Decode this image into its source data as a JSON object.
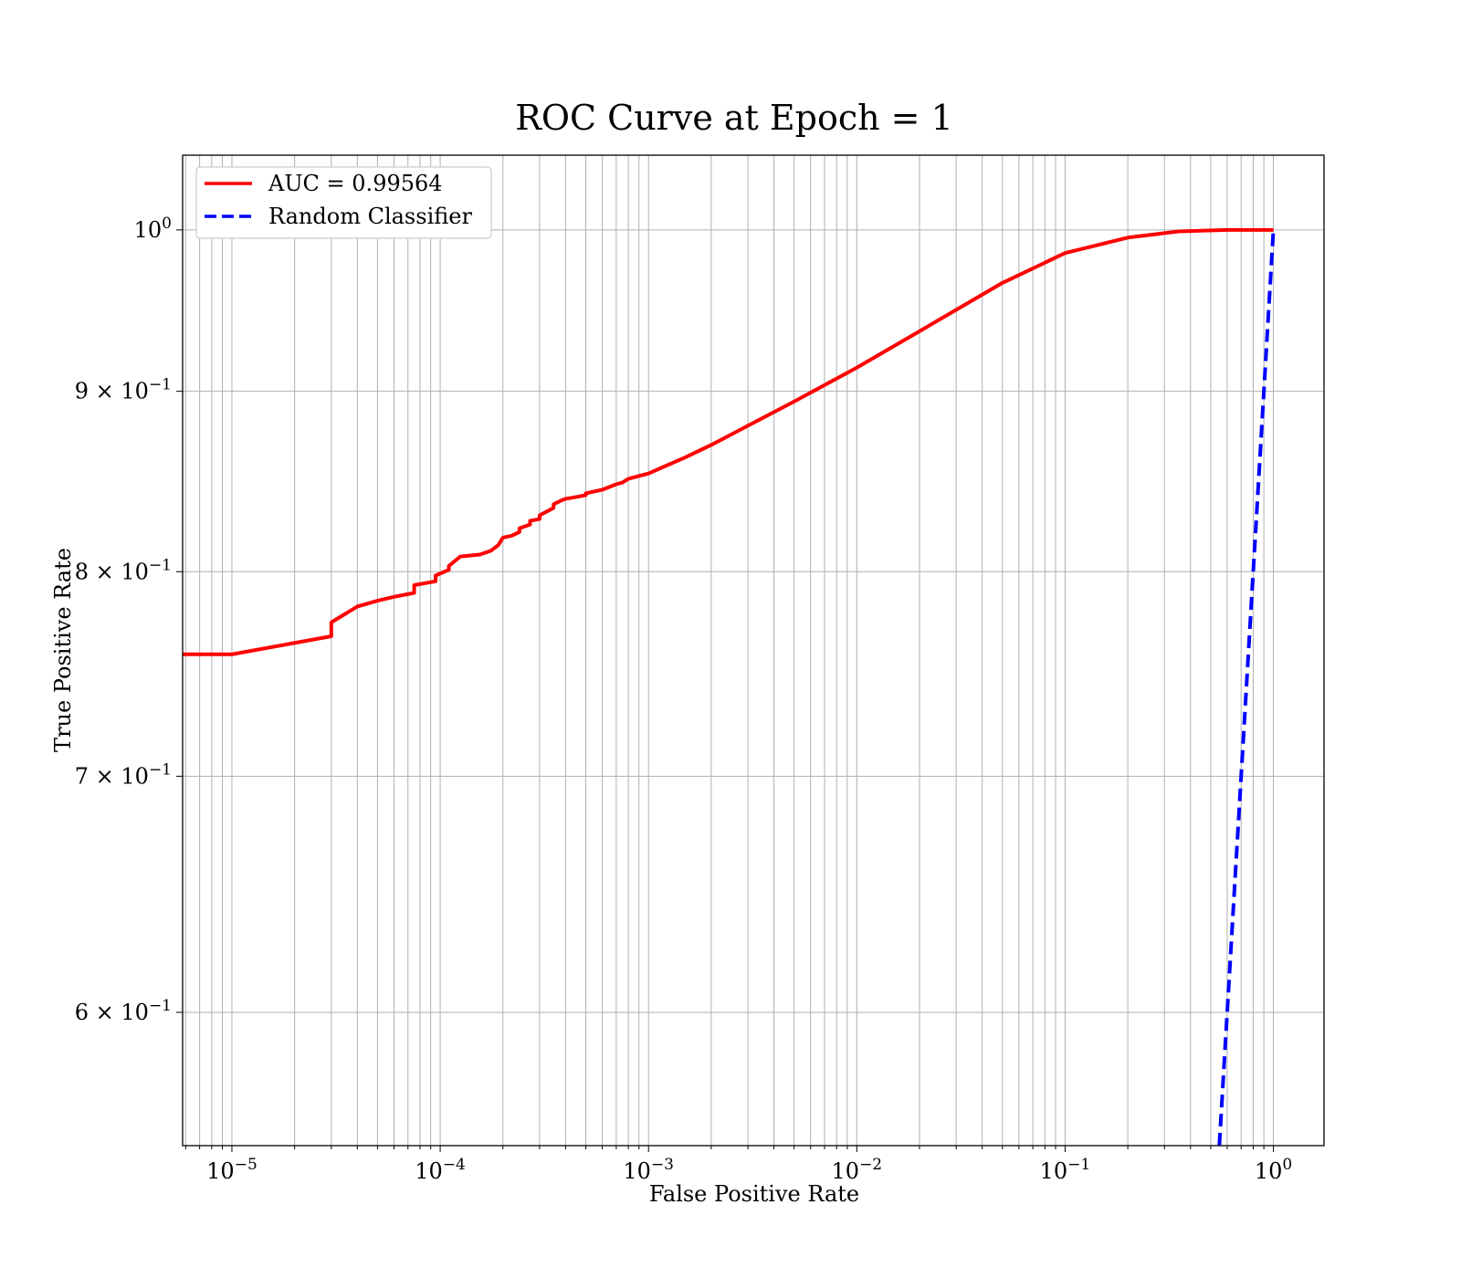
{
  "chart_data": {
    "type": "line",
    "title": "ROC Curve at Epoch = 1",
    "xlabel": "False Positive Rate",
    "ylabel": "True Positive Rate",
    "xscale": "log",
    "yscale": "log",
    "xlim": [
      5.8e-06,
      1.75
    ],
    "ylim": [
      0.55,
      1.05
    ],
    "grid": true,
    "grid_style": "major and minor",
    "legend_position": "upper-left",
    "x_ticks": [
      {
        "value": 1e-05,
        "base": "10",
        "exp": "−5"
      },
      {
        "value": 0.0001,
        "base": "10",
        "exp": "−4"
      },
      {
        "value": 0.001,
        "base": "10",
        "exp": "−3"
      },
      {
        "value": 0.01,
        "base": "10",
        "exp": "−2"
      },
      {
        "value": 0.1,
        "base": "10",
        "exp": "−1"
      },
      {
        "value": 1,
        "base": "10",
        "exp": "0"
      }
    ],
    "y_ticks": [
      {
        "value": 1.0,
        "base": "10",
        "exp": "0"
      },
      {
        "value": 0.9,
        "base": "9 × 10",
        "exp": "−1"
      },
      {
        "value": 0.8,
        "base": "8 × 10",
        "exp": "−1"
      },
      {
        "value": 0.7,
        "base": "7 × 10",
        "exp": "−1"
      },
      {
        "value": 0.6,
        "base": "6 × 10",
        "exp": "−1"
      }
    ],
    "series": [
      {
        "name": "AUC = 0.99564",
        "color": "#ff0000",
        "style": "solid",
        "x": [
          5.8e-06,
          1e-05,
          3e-05,
          3e-05,
          4e-05,
          5e-05,
          6e-05,
          7.5e-05,
          7.5e-05,
          9.5e-05,
          9.5e-05,
          0.00011,
          0.00011,
          0.000125,
          0.000155,
          0.000175,
          0.00019,
          0.0002,
          0.00022,
          0.00024,
          0.00024,
          0.00027,
          0.00027,
          0.0003,
          0.0003,
          0.00035,
          0.00035,
          0.00038,
          0.0004,
          0.00045,
          0.0005,
          0.0005,
          0.0006,
          0.0007,
          0.00075,
          0.0008,
          0.001,
          0.0015,
          0.002,
          0.003,
          0.005,
          0.01,
          0.02,
          0.05,
          0.1,
          0.2,
          0.35,
          0.6,
          1.0
        ],
        "y": [
          0.758,
          0.758,
          0.767,
          0.774,
          0.782,
          0.785,
          0.787,
          0.789,
          0.793,
          0.795,
          0.798,
          0.801,
          0.803,
          0.808,
          0.809,
          0.811,
          0.814,
          0.818,
          0.819,
          0.821,
          0.823,
          0.825,
          0.827,
          0.828,
          0.83,
          0.834,
          0.836,
          0.838,
          0.839,
          0.84,
          0.841,
          0.842,
          0.844,
          0.847,
          0.848,
          0.85,
          0.853,
          0.862,
          0.869,
          0.88,
          0.894,
          0.914,
          0.936,
          0.966,
          0.985,
          0.995,
          0.999,
          1.0,
          1.0
        ]
      },
      {
        "name": "Random Classifier",
        "color": "#0000ff",
        "style": "dashed",
        "x": [
          0.55,
          1.0
        ],
        "y": [
          0.55,
          1.0
        ]
      }
    ]
  }
}
